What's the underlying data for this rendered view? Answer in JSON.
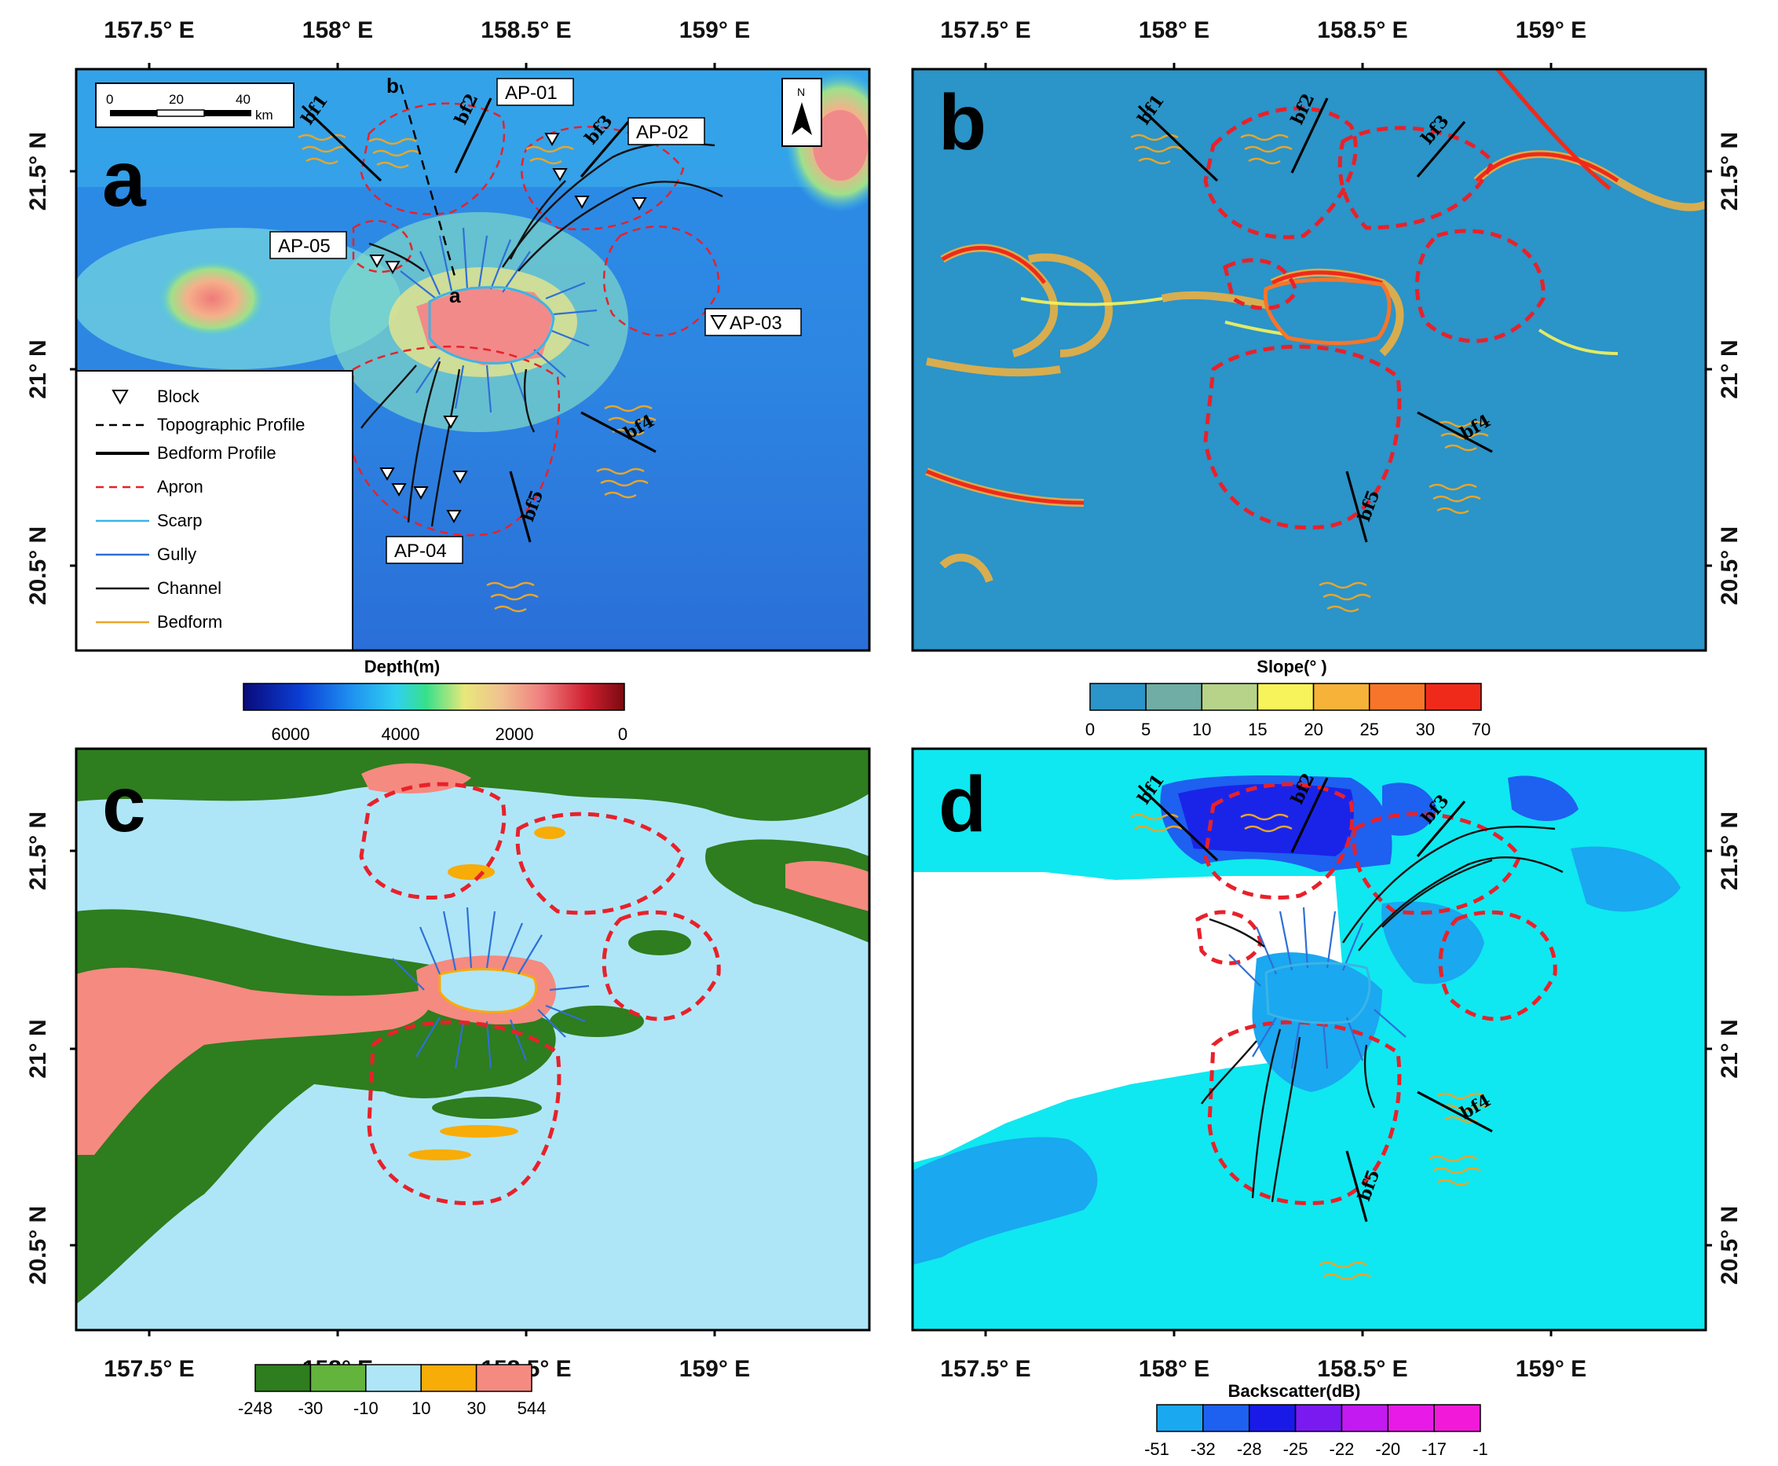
{
  "lon_ticks": [
    "157.5° E",
    "158° E",
    "158.5° E",
    "159° E"
  ],
  "lat_ticks": [
    "21.5° N",
    "21° N",
    "20.5° N"
  ],
  "panels": {
    "a": {
      "letter": "a",
      "scale_ticks": [
        "0",
        "20",
        "40"
      ],
      "scale_unit": "km",
      "north_symbol": "N",
      "profile_labels": [
        "a",
        "b"
      ],
      "apron_labels": [
        "AP-01",
        "AP-02",
        "AP-03",
        "AP-04",
        "AP-05"
      ],
      "bedform_profiles": [
        "bf1",
        "bf2",
        "bf3",
        "bf4",
        "bf5"
      ],
      "legend": [
        {
          "label": "Block",
          "icon": "triangle-down"
        },
        {
          "label": "Topographic Profile",
          "icon": "dashed-black-line"
        },
        {
          "label": "Bedform Profile",
          "icon": "thick-black-line"
        },
        {
          "label": "Apron",
          "icon": "dashed-red-line",
          "color": "#e8212a"
        },
        {
          "label": "Scarp",
          "icon": "line",
          "color": "#3bb4e6"
        },
        {
          "label": "Gully",
          "icon": "line",
          "color": "#2f6fd6"
        },
        {
          "label": "Channel",
          "icon": "line",
          "color": "#111111"
        },
        {
          "label": "Bedform",
          "icon": "line",
          "color": "#e9a52a"
        }
      ],
      "colorbar": {
        "title": "Depth(m)",
        "ticks": [
          "6000",
          "4000",
          "2000",
          "0"
        ],
        "colors": [
          "#0a0a7a",
          "#0b3fd6",
          "#1e8ff0",
          "#2fd0f0",
          "#37e08a",
          "#e8e87a",
          "#f0c090",
          "#f08080",
          "#d02030",
          "#7a0a10"
        ]
      }
    },
    "b": {
      "letter": "b",
      "bedform_profiles": [
        "bf1",
        "bf2",
        "bf3",
        "bf4",
        "bf5"
      ],
      "colorbar": {
        "title": "Slope(° )",
        "ticks": [
          "0",
          "5",
          "10",
          "15",
          "20",
          "25",
          "30",
          "70"
        ],
        "colors": [
          "#2b94c8",
          "#6fada5",
          "#b7d38a",
          "#f7f35a",
          "#f7b23a",
          "#f7752a",
          "#f02a1a"
        ]
      }
    },
    "c": {
      "letter": "c",
      "colorbar": {
        "ticks": [
          "-248",
          "-30",
          "-10",
          "10",
          "30",
          "544"
        ],
        "colors": [
          "#2e7d1e",
          "#62b43c",
          "#aee6f8",
          "#f7ac08",
          "#f58a80"
        ]
      }
    },
    "d": {
      "letter": "d",
      "bedform_profiles": [
        "bf1",
        "bf2",
        "bf3",
        "bf4",
        "bf5"
      ],
      "colorbar": {
        "title": "Backscatter(dB)",
        "ticks": [
          "-51",
          "-32",
          "-28",
          "-25",
          "-22",
          "-20",
          "-17",
          "-1"
        ],
        "colors": [
          "#1aa8f0",
          "#1e60f0",
          "#1a1ae8",
          "#7a1af0",
          "#c21af0",
          "#e81ae8",
          "#f21ad8"
        ]
      }
    }
  }
}
